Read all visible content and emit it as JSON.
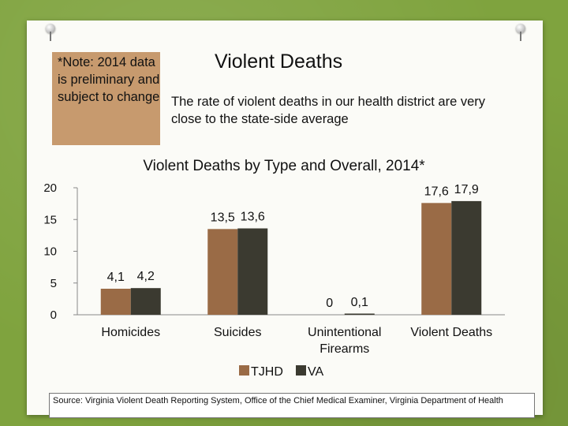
{
  "slide": {
    "note": "*Note: 2014 data is preliminary and subject to change",
    "title": "Violent Deaths",
    "subtitle": "The rate of violent deaths in our health district are very close to the state-side average",
    "source": "Source: Virginia Violent Death Reporting System, Office of the Chief Medical Examiner, Virginia Department of Health"
  },
  "colors": {
    "tjhd": "#9a6b46",
    "va": "#3b3a30",
    "note_bg": "#c79a6e"
  },
  "chart_data": {
    "type": "bar",
    "title": "Violent Deaths by Type and Overall, 2014*",
    "categories": [
      [
        "Homicides"
      ],
      [
        "Suicides"
      ],
      [
        "Unintentional",
        "Firearms"
      ],
      [
        "Violent Deaths"
      ]
    ],
    "series": [
      {
        "name": "TJHD",
        "values": [
          4.1,
          13.5,
          0,
          17.6
        ],
        "labels": [
          "4,1",
          "13,5",
          "0",
          "17,6"
        ]
      },
      {
        "name": "VA",
        "values": [
          4.2,
          13.6,
          0.1,
          17.9
        ],
        "labels": [
          "4,2",
          "13,6",
          "0,1",
          "17,9"
        ]
      }
    ],
    "yticks": [
      0,
      5,
      10,
      15,
      20
    ],
    "ylim": [
      0,
      20
    ],
    "xlabel": "",
    "ylabel": "",
    "legend": "bottom-center"
  }
}
